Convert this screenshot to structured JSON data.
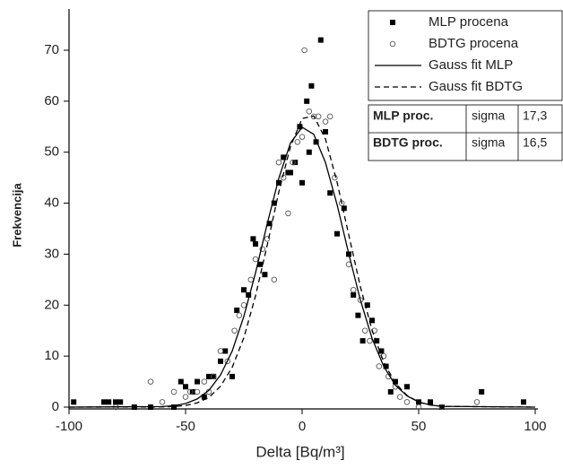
{
  "chart_data": {
    "type": "scatter",
    "xlabel": "Delta [Bq/m³]",
    "ylabel": "Frekvencija",
    "xlim": [
      -100,
      100
    ],
    "ylim": [
      0,
      78
    ],
    "xticks": [
      -100,
      -50,
      0,
      50,
      100
    ],
    "yticks": [
      0,
      10,
      20,
      30,
      40,
      50,
      60,
      70
    ],
    "series": [
      {
        "name": "MLP  procena",
        "style": "square",
        "color": "#000000",
        "x": [
          -98,
          -85,
          -83,
          -80,
          -78,
          -72,
          -65,
          -55,
          -52,
          -50,
          -47,
          -45,
          -42,
          -40,
          -38,
          -35,
          -33,
          -30,
          -28,
          -25,
          -23,
          -21,
          -20,
          -18,
          -16,
          -14,
          -12,
          -10,
          -8,
          -6,
          -5,
          -3,
          -1,
          0,
          2,
          3,
          4,
          6,
          8,
          10,
          12,
          15,
          18,
          20,
          22,
          24,
          26,
          28,
          30,
          32,
          34,
          36,
          38,
          40,
          45,
          50,
          55,
          60,
          77,
          95
        ],
        "values": [
          1,
          1,
          1,
          1,
          1,
          0,
          0,
          0,
          5,
          4,
          3,
          5,
          2,
          6,
          6,
          9,
          11,
          6,
          19,
          23,
          22,
          33,
          32,
          28,
          26,
          36,
          40,
          44,
          49,
          46,
          46,
          48,
          55,
          44,
          60,
          50,
          63,
          52,
          72,
          54,
          42,
          34,
          39,
          30,
          22,
          18,
          13,
          20,
          17,
          13,
          11,
          8,
          3,
          5,
          4,
          1,
          1,
          0,
          3,
          1
        ]
      },
      {
        "name": "BDTG  procena",
        "style": "circle",
        "color": "#555555",
        "x": [
          -80,
          -65,
          -60,
          -55,
          -50,
          -48,
          -45,
          -42,
          -40,
          -38,
          -35,
          -32,
          -29,
          -27,
          -25,
          -22,
          -20,
          -17,
          -15,
          -12,
          -10,
          -8,
          -6,
          -4,
          -2,
          0,
          1,
          3,
          5,
          7,
          10,
          12,
          14,
          17,
          20,
          22,
          25,
          27,
          29,
          31,
          33,
          35,
          37,
          40,
          42,
          45,
          50,
          60,
          75
        ],
        "values": [
          0,
          5,
          1,
          3,
          2,
          3,
          3,
          5,
          3,
          6,
          11,
          9,
          15,
          18,
          20,
          25,
          29,
          31,
          33,
          25,
          48,
          45,
          38,
          48,
          52,
          53,
          70,
          58,
          57,
          57,
          56,
          57,
          45,
          40,
          28,
          23,
          21,
          15,
          13,
          15,
          8,
          10,
          6,
          4,
          2,
          1,
          0,
          0,
          1
        ]
      },
      {
        "name": "Gauss fit MLP",
        "style": "solid",
        "color": "#000000",
        "x": [
          -100,
          -60,
          -55,
          -50,
          -45,
          -40,
          -35,
          -30,
          -25,
          -20,
          -15,
          -10,
          -5,
          0,
          5,
          10,
          15,
          20,
          25,
          30,
          35,
          40,
          45,
          50,
          55,
          60,
          100
        ],
        "values": [
          0,
          0.11,
          0.29,
          0.71,
          1.6,
          3.3,
          6.3,
          11.0,
          17.8,
          26.3,
          35.9,
          44.9,
          51.8,
          54.9,
          53.5,
          48.0,
          39.7,
          30.1,
          21.0,
          13.5,
          8.0,
          4.3,
          2.2,
          1.0,
          0.42,
          0.16,
          0
        ]
      },
      {
        "name": "Gauss fit BDTG",
        "style": "dashed",
        "color": "#000000",
        "x": [
          -100,
          -60,
          -55,
          -50,
          -45,
          -40,
          -35,
          -30,
          -25,
          -20,
          -15,
          -10,
          -5,
          0,
          5,
          10,
          15,
          20,
          25,
          30,
          35,
          40,
          45,
          50,
          55,
          60,
          100
        ],
        "values": [
          0,
          0.04,
          0.12,
          0.33,
          0.84,
          1.9,
          4.1,
          7.8,
          13.6,
          21.8,
          31.7,
          42.2,
          51.1,
          56.6,
          57.1,
          52.6,
          44.1,
          33.8,
          23.6,
          15.1,
          8.8,
          4.7,
          2.3,
          1.0,
          0.4,
          0.15,
          0
        ]
      }
    ],
    "table": [
      [
        "MLP proc.",
        "sigma",
        "17,3"
      ],
      [
        "BDTG proc.",
        "sigma",
        "16,5"
      ]
    ]
  }
}
